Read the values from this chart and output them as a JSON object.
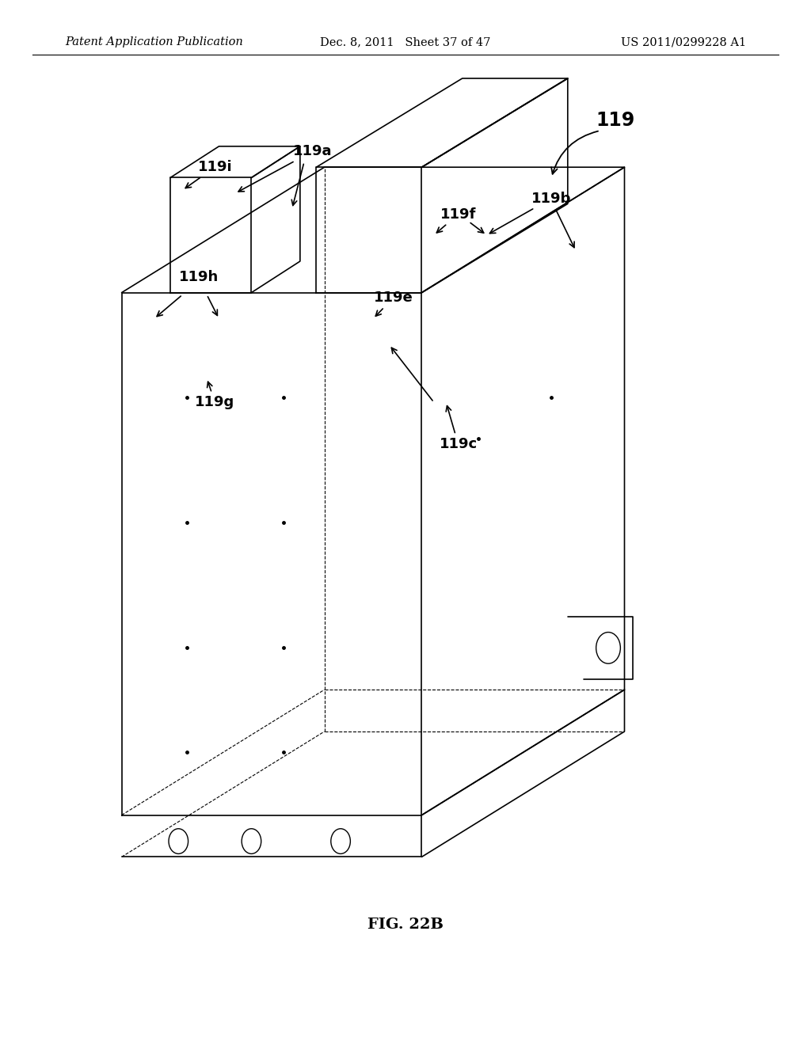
{
  "background_color": "#ffffff",
  "header_left": "Patent Application Publication",
  "header_mid": "Dec. 8, 2011   Sheet 37 of 47",
  "header_right": "US 2011/0299228 A1",
  "figure_label": "FIG. 22B",
  "header_fontsize": 10.5,
  "fig_label_fontsize": 14
}
